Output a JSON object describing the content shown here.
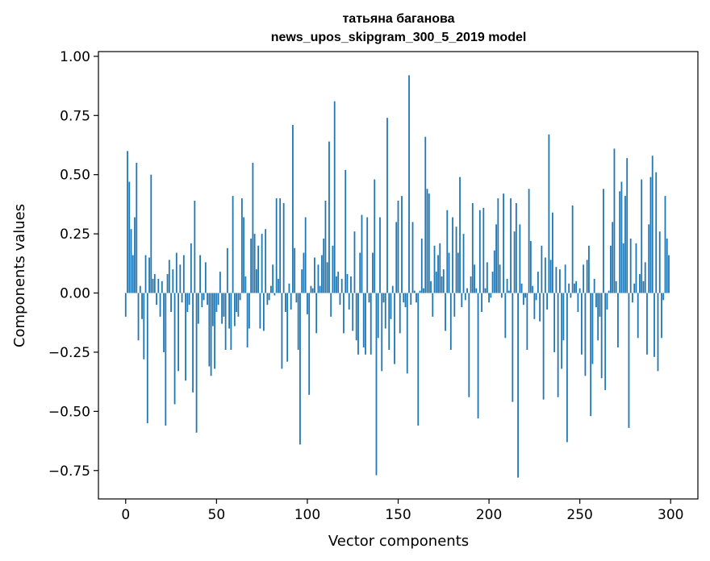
{
  "chart_data": {
    "type": "bar",
    "title_line1": "татьяна баганова",
    "title_line2": "news_upos_skipgram_300_5_2019 model",
    "xlabel": "Vector components",
    "ylabel": "Components values",
    "xlim": [
      -15,
      315
    ],
    "ylim": [
      -0.87,
      1.02
    ],
    "x_ticks": [
      0,
      50,
      100,
      150,
      200,
      250,
      300
    ],
    "x_tick_labels": [
      "0",
      "50",
      "100",
      "150",
      "200",
      "250",
      "300"
    ],
    "y_ticks": [
      1.0,
      0.75,
      0.5,
      0.25,
      0.0,
      -0.25,
      -0.5,
      -0.75
    ],
    "y_tick_labels": [
      "1.00",
      "0.75",
      "0.50",
      "0.25",
      "0.00",
      "−0.25",
      "−0.50",
      "−0.75"
    ],
    "bar_color": "#1f77b4",
    "grid": false,
    "legend": "none",
    "values": [
      -0.1,
      0.6,
      0.47,
      0.27,
      0.16,
      0.32,
      0.55,
      -0.2,
      0.03,
      -0.11,
      -0.28,
      0.16,
      -0.55,
      0.15,
      0.5,
      0.06,
      0.08,
      -0.05,
      0.06,
      -0.1,
      0.05,
      -0.25,
      -0.56,
      0.08,
      0.14,
      -0.08,
      0.1,
      -0.47,
      0.17,
      -0.33,
      0.12,
      -0.04,
      0.16,
      -0.37,
      -0.08,
      -0.05,
      0.21,
      -0.42,
      0.39,
      -0.59,
      -0.13,
      0.16,
      -0.06,
      -0.03,
      0.13,
      -0.05,
      -0.31,
      -0.35,
      -0.14,
      -0.32,
      -0.08,
      -0.05,
      0.09,
      -0.13,
      -0.1,
      -0.24,
      0.19,
      -0.15,
      -0.24,
      0.41,
      -0.14,
      -0.08,
      -0.1,
      -0.03,
      0.4,
      0.32,
      0.07,
      -0.23,
      -0.15,
      0.23,
      0.55,
      0.25,
      0.1,
      0.2,
      -0.15,
      0.25,
      -0.16,
      0.27,
      -0.05,
      -0.03,
      0.03,
      0.12,
      -0.01,
      0.4,
      0.06,
      0.4,
      -0.32,
      0.38,
      -0.08,
      -0.29,
      0.04,
      -0.07,
      0.71,
      0.19,
      -0.04,
      -0.24,
      -0.64,
      0.1,
      0.17,
      0.32,
      -0.09,
      -0.43,
      0.03,
      0.02,
      0.15,
      -0.17,
      0.12,
      0.03,
      0.16,
      0.23,
      0.39,
      0.13,
      0.64,
      -0.1,
      0.2,
      0.81,
      0.07,
      0.09,
      -0.05,
      0.06,
      -0.17,
      0.52,
      0.08,
      -0.07,
      0.07,
      -0.16,
      0.26,
      -0.2,
      -0.26,
      0.17,
      0.33,
      -0.23,
      -0.26,
      0.32,
      -0.04,
      -0.26,
      0.17,
      0.48,
      -0.77,
      -0.19,
      0.32,
      -0.33,
      -0.04,
      -0.15,
      0.74,
      -0.24,
      -0.11,
      0.03,
      -0.3,
      0.3,
      0.39,
      -0.17,
      0.41,
      -0.04,
      -0.06,
      -0.34,
      0.92,
      -0.05,
      0.3,
      0.01,
      -0.04,
      -0.56,
      0.01,
      0.23,
      0.02,
      0.66,
      0.44,
      0.42,
      0.05,
      -0.1,
      0.2,
      0.09,
      0.16,
      0.21,
      0.07,
      0.1,
      -0.16,
      0.35,
      0.17,
      -0.24,
      0.32,
      -0.1,
      0.28,
      0.17,
      0.49,
      -0.06,
      0.25,
      -0.03,
      0.02,
      -0.44,
      0.07,
      0.38,
      0.12,
      0.02,
      -0.53,
      0.35,
      -0.08,
      0.36,
      0.02,
      0.13,
      -0.04,
      -0.02,
      0.09,
      0.18,
      0.29,
      0.4,
      0.12,
      -0.02,
      0.42,
      -0.19,
      0.06,
      0.01,
      0.4,
      -0.46,
      0.26,
      0.38,
      -0.78,
      0.29,
      0.04,
      -0.05,
      -0.02,
      -0.24,
      0.44,
      0.22,
      0.03,
      -0.11,
      -0.03,
      0.09,
      -0.12,
      0.2,
      -0.45,
      0.15,
      -0.07,
      0.67,
      0.14,
      0.34,
      -0.25,
      0.11,
      -0.44,
      0.1,
      -0.32,
      -0.2,
      0.12,
      -0.63,
      0.04,
      -0.02,
      0.37,
      0.04,
      0.05,
      -0.08,
      0.02,
      -0.26,
      0.12,
      -0.35,
      0.14,
      0.2,
      -0.52,
      -0.3,
      0.06,
      -0.06,
      -0.2,
      -0.1,
      -0.36,
      0.44,
      -0.41,
      -0.07,
      0.01,
      0.2,
      0.3,
      0.61,
      0.05,
      -0.23,
      0.43,
      0.47,
      0.21,
      0.41,
      0.57,
      -0.57,
      0.23,
      -0.04,
      0.04,
      0.21,
      -0.19,
      0.08,
      0.48,
      0.05,
      0.13,
      -0.26,
      0.29,
      0.49,
      0.58,
      -0.27,
      0.51,
      -0.33,
      0.26,
      -0.19,
      -0.03,
      0.41,
      0.23,
      0.16
    ]
  }
}
